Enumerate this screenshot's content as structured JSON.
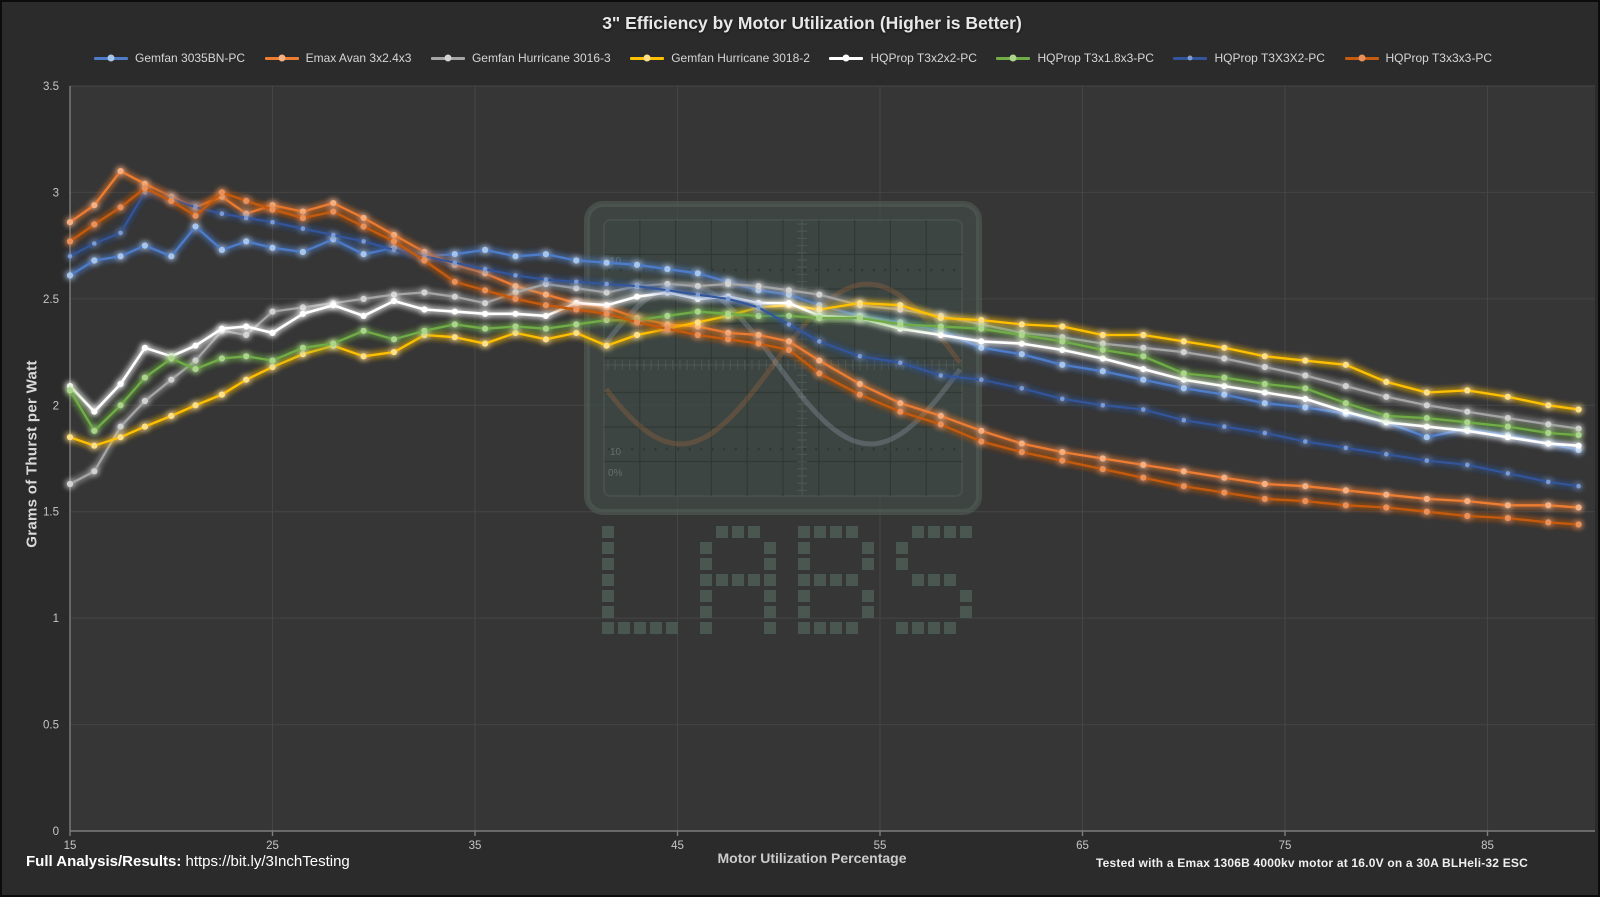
{
  "title": "3\" Efficiency by Motor Utilization (Higher is Better)",
  "footer": {
    "left_bold": "Full Analysis/Results:",
    "left_url": "https://bit.ly/3InchTesting",
    "right": "Tested with a Emax 1306B 4000kv motor at 16.0V on a 30A BLHeli-32 ESC"
  },
  "watermark": {
    "label": "LABS",
    "scope_top_label": "10",
    "scope_bottom_label": "10",
    "scope_bottom_label2": "0%"
  },
  "colors": {
    "page_background": "#2b2b2b",
    "plot_background": "#363636",
    "gridline": "#454545",
    "axis_line": "#7d7d7d",
    "tick_text": "#c6c6c6",
    "title_text": "#e8e8e8",
    "watermark_square": "#4a5751"
  },
  "chart_data": {
    "type": "line",
    "title": "3\" Efficiency by Motor Utilization (Higher is Better)",
    "xlabel": "Motor Utilization Percentage",
    "ylabel": "Grams of Thurst per Watt",
    "xlim": [
      15,
      90
    ],
    "ylim": [
      0,
      3.5
    ],
    "x_ticks": [
      15,
      25,
      35,
      45,
      55,
      65,
      75,
      85
    ],
    "y_ticks": [
      0,
      0.5,
      1,
      1.5,
      2,
      2.5,
      3,
      3.5
    ],
    "grid": true,
    "legend_position": "top",
    "x": [
      15,
      16.2,
      17.5,
      18.7,
      20,
      21.2,
      22.5,
      23.7,
      25,
      26.5,
      28,
      29.5,
      31,
      32.5,
      34,
      35.5,
      37,
      38.5,
      40,
      41.5,
      43,
      44.5,
      46,
      47.5,
      49,
      50.5,
      52,
      54,
      56,
      58,
      60,
      62,
      64,
      66,
      68,
      70,
      72,
      74,
      76,
      78,
      80,
      82,
      84,
      86,
      88,
      89.5
    ],
    "series": [
      {
        "name": "Gemfan 3035BN-PC",
        "color": "#4E7CC9",
        "marker_color": "#A8C6EC",
        "marker_size": 3.1,
        "line_width": 2.3,
        "values": [
          2.61,
          2.68,
          2.7,
          2.75,
          2.7,
          2.84,
          2.73,
          2.77,
          2.74,
          2.72,
          2.78,
          2.71,
          2.74,
          2.7,
          2.71,
          2.73,
          2.7,
          2.71,
          2.68,
          2.67,
          2.66,
          2.64,
          2.62,
          2.58,
          2.54,
          2.52,
          2.47,
          2.42,
          2.39,
          2.35,
          2.27,
          2.24,
          2.19,
          2.16,
          2.12,
          2.08,
          2.05,
          2.01,
          1.99,
          1.96,
          1.92,
          1.85,
          1.89,
          1.86,
          1.82,
          1.79
        ]
      },
      {
        "name": "Emax Avan 3x2.4x3",
        "color": "#ED7D31",
        "marker_color": "#F5B183",
        "marker_size": 3.1,
        "line_width": 2.3,
        "values": [
          2.86,
          2.94,
          3.1,
          3.04,
          2.98,
          2.93,
          2.98,
          2.9,
          2.94,
          2.91,
          2.95,
          2.88,
          2.8,
          2.72,
          2.66,
          2.62,
          2.56,
          2.52,
          2.48,
          2.46,
          2.41,
          2.38,
          2.37,
          2.34,
          2.33,
          2.3,
          2.21,
          2.1,
          2.01,
          1.95,
          1.88,
          1.82,
          1.78,
          1.75,
          1.72,
          1.69,
          1.66,
          1.63,
          1.62,
          1.6,
          1.58,
          1.56,
          1.55,
          1.53,
          1.53,
          1.52
        ]
      },
      {
        "name": "Gemfan Hurricane 3016-3",
        "color": "#A5A5A5",
        "marker_color": "#D2D2D2",
        "marker_size": 3.1,
        "line_width": 2.3,
        "values": [
          1.63,
          1.69,
          1.9,
          2.02,
          2.12,
          2.21,
          2.35,
          2.33,
          2.44,
          2.46,
          2.48,
          2.5,
          2.52,
          2.53,
          2.51,
          2.48,
          2.53,
          2.57,
          2.55,
          2.53,
          2.56,
          2.57,
          2.56,
          2.57,
          2.56,
          2.54,
          2.52,
          2.47,
          2.45,
          2.42,
          2.38,
          2.34,
          2.32,
          2.29,
          2.27,
          2.25,
          2.22,
          2.18,
          2.14,
          2.09,
          2.04,
          2.0,
          1.97,
          1.94,
          1.91,
          1.89
        ]
      },
      {
        "name": "Gemfan Hurricane 3018-2",
        "color": "#FFC000",
        "marker_color": "#FFE08A",
        "marker_size": 3.1,
        "line_width": 2.3,
        "values": [
          1.85,
          1.81,
          1.85,
          1.9,
          1.95,
          2.0,
          2.05,
          2.12,
          2.18,
          2.24,
          2.28,
          2.23,
          2.25,
          2.33,
          2.32,
          2.29,
          2.34,
          2.31,
          2.34,
          2.28,
          2.33,
          2.36,
          2.39,
          2.42,
          2.46,
          2.47,
          2.45,
          2.48,
          2.47,
          2.41,
          2.4,
          2.38,
          2.37,
          2.33,
          2.33,
          2.3,
          2.27,
          2.23,
          2.21,
          2.19,
          2.11,
          2.06,
          2.07,
          2.04,
          2.0,
          1.98
        ]
      },
      {
        "name": "HQProp T3x2x2-PC",
        "color": "#FFFFFF",
        "marker_color": "#FFFFFF",
        "marker_size": 3.1,
        "line_width": 2.6,
        "values": [
          2.09,
          1.97,
          2.1,
          2.27,
          2.23,
          2.28,
          2.36,
          2.37,
          2.34,
          2.43,
          2.47,
          2.42,
          2.49,
          2.45,
          2.44,
          2.43,
          2.43,
          2.42,
          2.48,
          2.47,
          2.51,
          2.53,
          2.5,
          2.51,
          2.48,
          2.48,
          2.42,
          2.41,
          2.36,
          2.33,
          2.3,
          2.29,
          2.26,
          2.22,
          2.17,
          2.12,
          2.09,
          2.06,
          2.03,
          1.97,
          1.92,
          1.9,
          1.88,
          1.85,
          1.82,
          1.81
        ]
      },
      {
        "name": "HQProp T3x1.8x3-PC",
        "color": "#70AD47",
        "marker_color": "#ACD58C",
        "marker_size": 3.1,
        "line_width": 2.3,
        "values": [
          2.07,
          1.88,
          2.0,
          2.13,
          2.22,
          2.17,
          2.22,
          2.23,
          2.21,
          2.27,
          2.29,
          2.35,
          2.31,
          2.35,
          2.38,
          2.36,
          2.37,
          2.36,
          2.38,
          2.4,
          2.4,
          2.42,
          2.44,
          2.43,
          2.42,
          2.42,
          2.41,
          2.41,
          2.38,
          2.37,
          2.36,
          2.33,
          2.3,
          2.26,
          2.23,
          2.15,
          2.13,
          2.1,
          2.08,
          2.01,
          1.95,
          1.94,
          1.92,
          1.9,
          1.87,
          1.86
        ]
      },
      {
        "name": "HQProp T3X3X2-PC",
        "color": "#31569E",
        "marker_color": "#7B9BD2",
        "marker_size": 2.3,
        "line_width": 2.0,
        "values": [
          2.7,
          2.76,
          2.81,
          3.0,
          2.97,
          2.93,
          2.9,
          2.88,
          2.86,
          2.83,
          2.8,
          2.77,
          2.73,
          2.7,
          2.67,
          2.64,
          2.61,
          2.59,
          2.58,
          2.57,
          2.56,
          2.54,
          2.52,
          2.5,
          2.46,
          2.38,
          2.3,
          2.23,
          2.2,
          2.14,
          2.12,
          2.08,
          2.03,
          2.0,
          1.98,
          1.93,
          1.9,
          1.87,
          1.83,
          1.8,
          1.77,
          1.74,
          1.72,
          1.68,
          1.64,
          1.62
        ]
      },
      {
        "name": "HQProp T3x3x3-PC",
        "color": "#C55A11",
        "marker_color": "#E8915A",
        "marker_size": 3.1,
        "line_width": 2.3,
        "values": [
          2.77,
          2.85,
          2.93,
          3.02,
          2.96,
          2.89,
          3.0,
          2.96,
          2.92,
          2.88,
          2.91,
          2.84,
          2.77,
          2.68,
          2.58,
          2.54,
          2.5,
          2.47,
          2.45,
          2.43,
          2.39,
          2.36,
          2.33,
          2.31,
          2.29,
          2.26,
          2.15,
          2.05,
          1.97,
          1.91,
          1.83,
          1.78,
          1.74,
          1.7,
          1.66,
          1.62,
          1.59,
          1.56,
          1.55,
          1.53,
          1.52,
          1.5,
          1.48,
          1.47,
          1.45,
          1.44
        ]
      }
    ]
  }
}
